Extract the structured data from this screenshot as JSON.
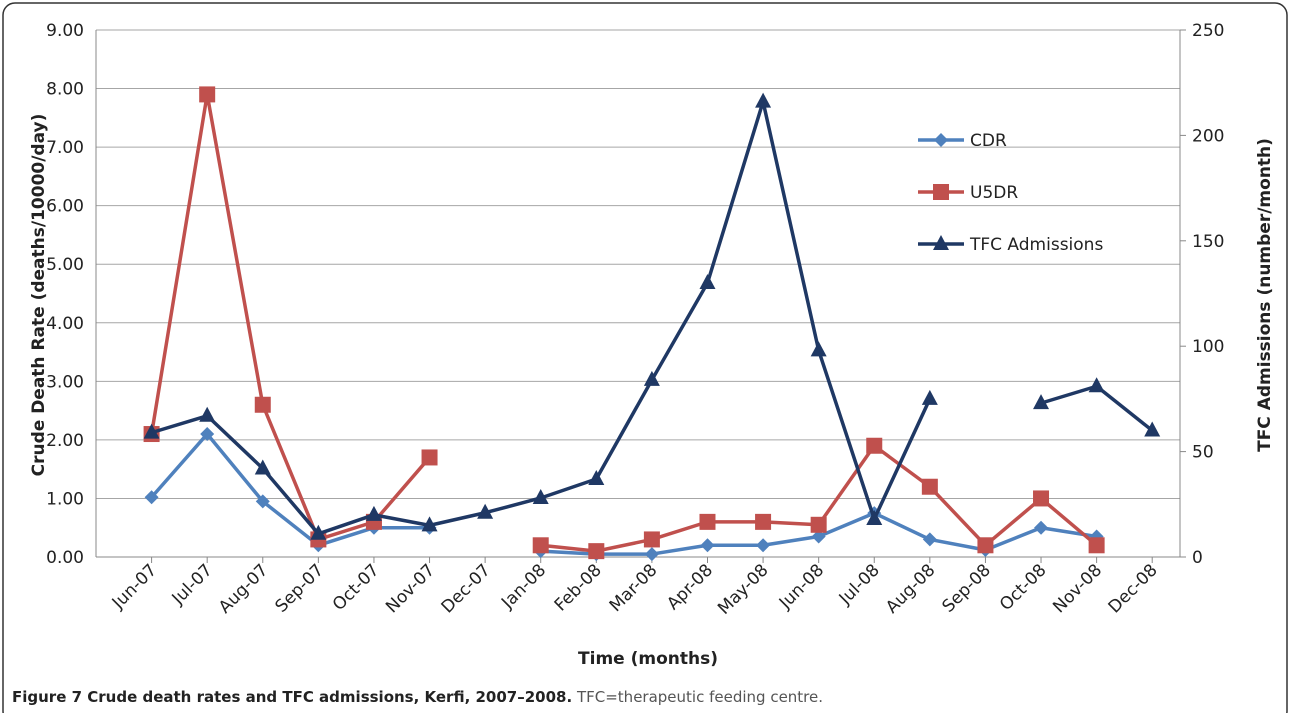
{
  "chart_data": {
    "type": "line",
    "caption_title": "Figure 7 Crude death rates and TFC admissions, Kerfi, 2007–2008.",
    "caption_text": "TFC=therapeutic feeding centre.",
    "xlabel": "Time  (months)",
    "ylabel": "Crude Death Rate (deaths/10000/day)",
    "y2label": "TFC Admissions (number/month)",
    "categories": [
      "Jun-07",
      "Jul-07",
      "Aug-07",
      "Sep-07",
      "Oct-07",
      "Nov-07",
      "Dec-07",
      "Jan-08",
      "Feb-08",
      "Mar-08",
      "Apr-08",
      "May-08",
      "Jun-08",
      "Jul-08",
      "Aug-08",
      "Sep-08",
      "Oct-08",
      "Nov-08",
      "Dec-08"
    ],
    "series": [
      {
        "name": "CDR",
        "color": "#4f81bd",
        "marker": "diamond",
        "values": [
          1.02,
          2.1,
          0.95,
          0.2,
          0.5,
          0.5,
          null,
          0.1,
          0.05,
          0.05,
          0.2,
          0.2,
          0.35,
          0.75,
          0.3,
          0.12,
          0.5,
          0.35,
          null
        ]
      },
      {
        "name": "U5DR",
        "color": "#c0504d",
        "marker": "square",
        "values": [
          2.1,
          7.9,
          2.6,
          0.3,
          0.6,
          1.7,
          null,
          0.2,
          0.1,
          0.3,
          0.6,
          0.6,
          0.55,
          1.9,
          1.2,
          0.2,
          1.0,
          0.2,
          null
        ]
      },
      {
        "name": "TFC Admissions",
        "color": "#1f3864",
        "marker": "triangle",
        "axis": "y2",
        "values": [
          59,
          67,
          42,
          11,
          20,
          15,
          21,
          28,
          37,
          84,
          130,
          216,
          98,
          18,
          75,
          null,
          73,
          81,
          60
        ]
      }
    ],
    "ylim": [
      0,
      9
    ],
    "yticks": [
      {
        "value": 0,
        "label": "0.00"
      },
      {
        "value": 1,
        "label": "1.00"
      },
      {
        "value": 2,
        "label": "2.00"
      },
      {
        "value": 3,
        "label": "3.00"
      },
      {
        "value": 4,
        "label": "4.00"
      },
      {
        "value": 5,
        "label": "5.00"
      },
      {
        "value": 6,
        "label": "6.00"
      },
      {
        "value": 7,
        "label": "7.00"
      },
      {
        "value": 8,
        "label": "8.00"
      },
      {
        "value": 9,
        "label": "9.00"
      }
    ],
    "y2lim": [
      0,
      250
    ],
    "y2ticks": [
      0,
      50,
      100,
      150,
      200,
      250
    ],
    "grid": true,
    "legend": "upper right"
  }
}
